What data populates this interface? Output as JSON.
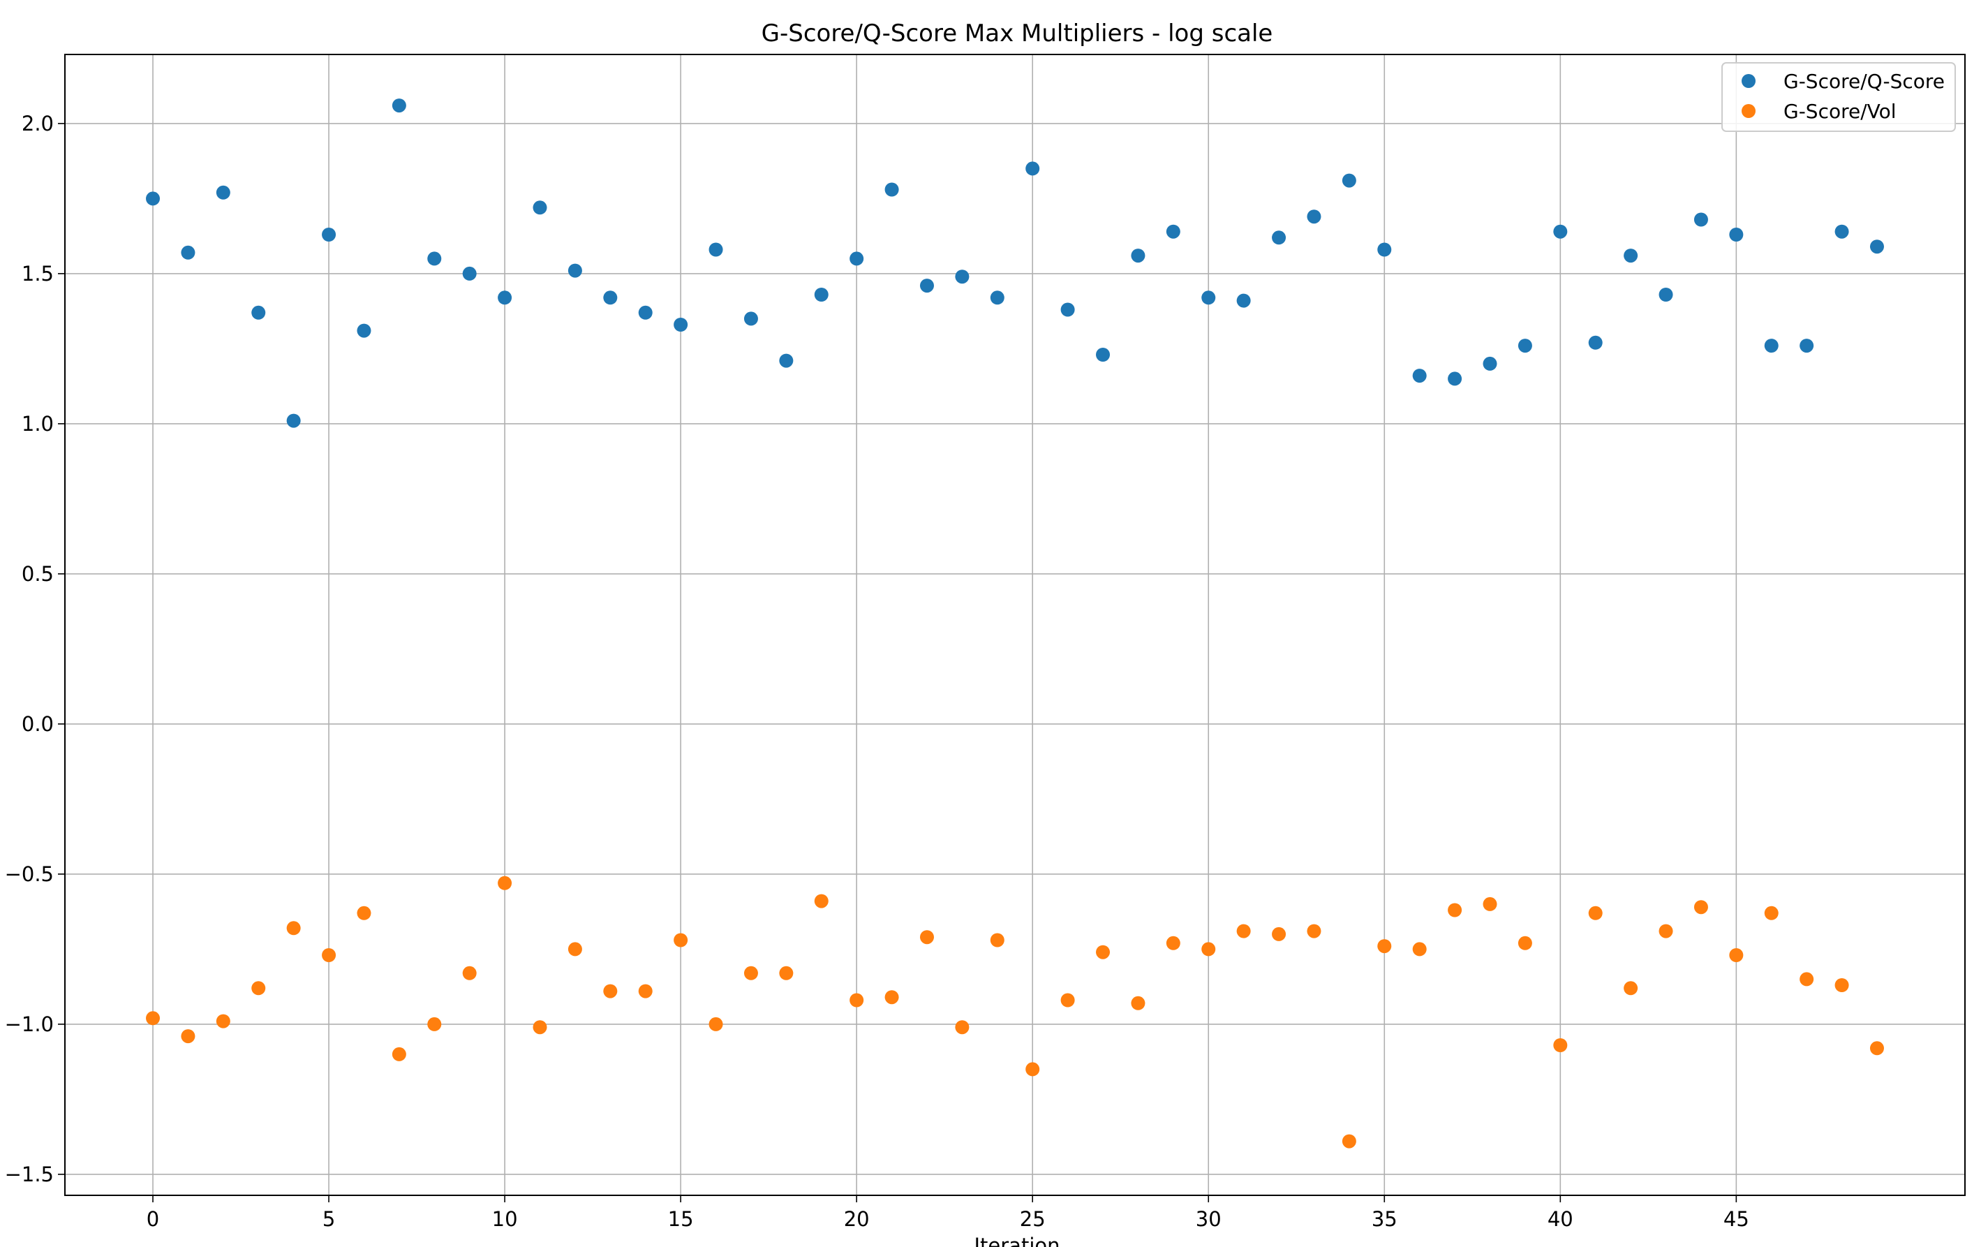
{
  "chart_data": {
    "type": "scatter",
    "title": "G-Score/Q-Score Max Multipliers - log scale",
    "xlabel": "Iteration",
    "ylabel": "",
    "xlim": [
      -2.5,
      51.5
    ],
    "ylim": [
      -1.57,
      2.23
    ],
    "xticks": [
      0,
      5,
      10,
      15,
      20,
      25,
      30,
      35,
      40,
      45
    ],
    "yticks": [
      -1.5,
      -1.0,
      -0.5,
      0.0,
      0.5,
      1.0,
      1.5,
      2.0
    ],
    "ytick_labels": [
      "−1.5",
      "−1.0",
      "−0.5",
      "0.0",
      "0.5",
      "1.0",
      "1.5",
      "2.0"
    ],
    "grid": true,
    "legend_position": "top-right",
    "x": [
      0,
      1,
      2,
      3,
      4,
      5,
      6,
      7,
      8,
      9,
      10,
      11,
      12,
      13,
      14,
      15,
      16,
      17,
      18,
      19,
      20,
      21,
      22,
      23,
      24,
      25,
      26,
      27,
      28,
      29,
      30,
      31,
      32,
      33,
      34,
      35,
      36,
      37,
      38,
      39,
      40,
      41,
      42,
      43,
      44,
      45,
      46,
      47,
      48,
      49
    ],
    "series": [
      {
        "name": "G-Score/Q-Score",
        "color": "#1f77b4",
        "values": [
          1.75,
          1.57,
          1.77,
          1.37,
          1.01,
          1.63,
          1.31,
          2.06,
          1.55,
          1.5,
          1.42,
          1.72,
          1.51,
          1.42,
          1.37,
          1.33,
          1.58,
          1.35,
          1.21,
          1.43,
          1.55,
          1.78,
          1.46,
          1.49,
          1.42,
          1.85,
          1.38,
          1.23,
          1.56,
          1.64,
          1.42,
          1.41,
          1.62,
          1.69,
          1.81,
          1.58,
          1.16,
          1.15,
          1.2,
          1.26,
          1.64,
          1.27,
          1.56,
          1.43,
          1.68,
          1.63,
          1.26,
          1.26,
          1.64,
          1.59
        ]
      },
      {
        "name": "G-Score/Vol",
        "color": "#ff7f0e",
        "values": [
          -0.98,
          -1.04,
          -0.99,
          -0.88,
          -0.68,
          -0.77,
          -0.63,
          -1.1,
          -1.0,
          -0.83,
          -0.53,
          -1.01,
          -0.75,
          -0.89,
          -0.89,
          -0.72,
          -1.0,
          -0.83,
          -0.83,
          -0.59,
          -0.92,
          -0.91,
          -0.71,
          -1.01,
          -0.72,
          -1.15,
          -0.92,
          -0.76,
          -0.93,
          -0.73,
          -0.75,
          -0.69,
          -0.7,
          -0.69,
          -1.39,
          -0.74,
          -0.75,
          -0.62,
          -0.6,
          -0.73,
          -1.07,
          -0.63,
          -0.88,
          -0.69,
          -0.61,
          -0.77,
          -0.63,
          -0.85,
          -0.87,
          -1.08
        ]
      }
    ]
  }
}
